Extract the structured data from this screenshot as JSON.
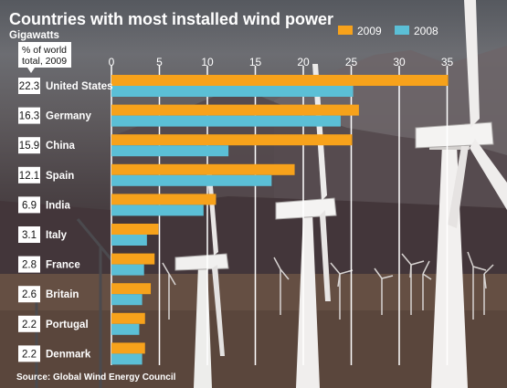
{
  "chart_data": {
    "type": "bar",
    "orientation": "horizontal",
    "title": "Countries with most installed wind power",
    "subtitle": "Gigawatts",
    "column_header": [
      "% of world",
      "total, 2009"
    ],
    "source": "Source: Global Wind Energy Council",
    "categories": [
      "United States",
      "Germany",
      "China",
      "Spain",
      "India",
      "Italy",
      "France",
      "Britain",
      "Portugal",
      "Denmark"
    ],
    "world_share_2009": [
      "22.3",
      "16.3",
      "15.9",
      "12.1",
      "6.9",
      "3.1",
      "2.8",
      "2.6",
      "2.2",
      "2.2"
    ],
    "series": [
      {
        "name": "2009",
        "color": "#f7a21b",
        "values": [
          35.1,
          25.8,
          25.1,
          19.1,
          10.9,
          4.9,
          4.5,
          4.1,
          3.5,
          3.5
        ]
      },
      {
        "name": "2008",
        "color": "#5bbfd6",
        "values": [
          25.2,
          23.9,
          12.2,
          16.7,
          9.6,
          3.7,
          3.4,
          3.2,
          2.9,
          3.2
        ]
      }
    ],
    "xlim": [
      0,
      40
    ],
    "xticks": [
      0,
      5,
      10,
      15,
      20,
      25,
      30,
      35
    ],
    "xaxis_position": "top",
    "grid": true,
    "legend_placement": "top-right"
  }
}
